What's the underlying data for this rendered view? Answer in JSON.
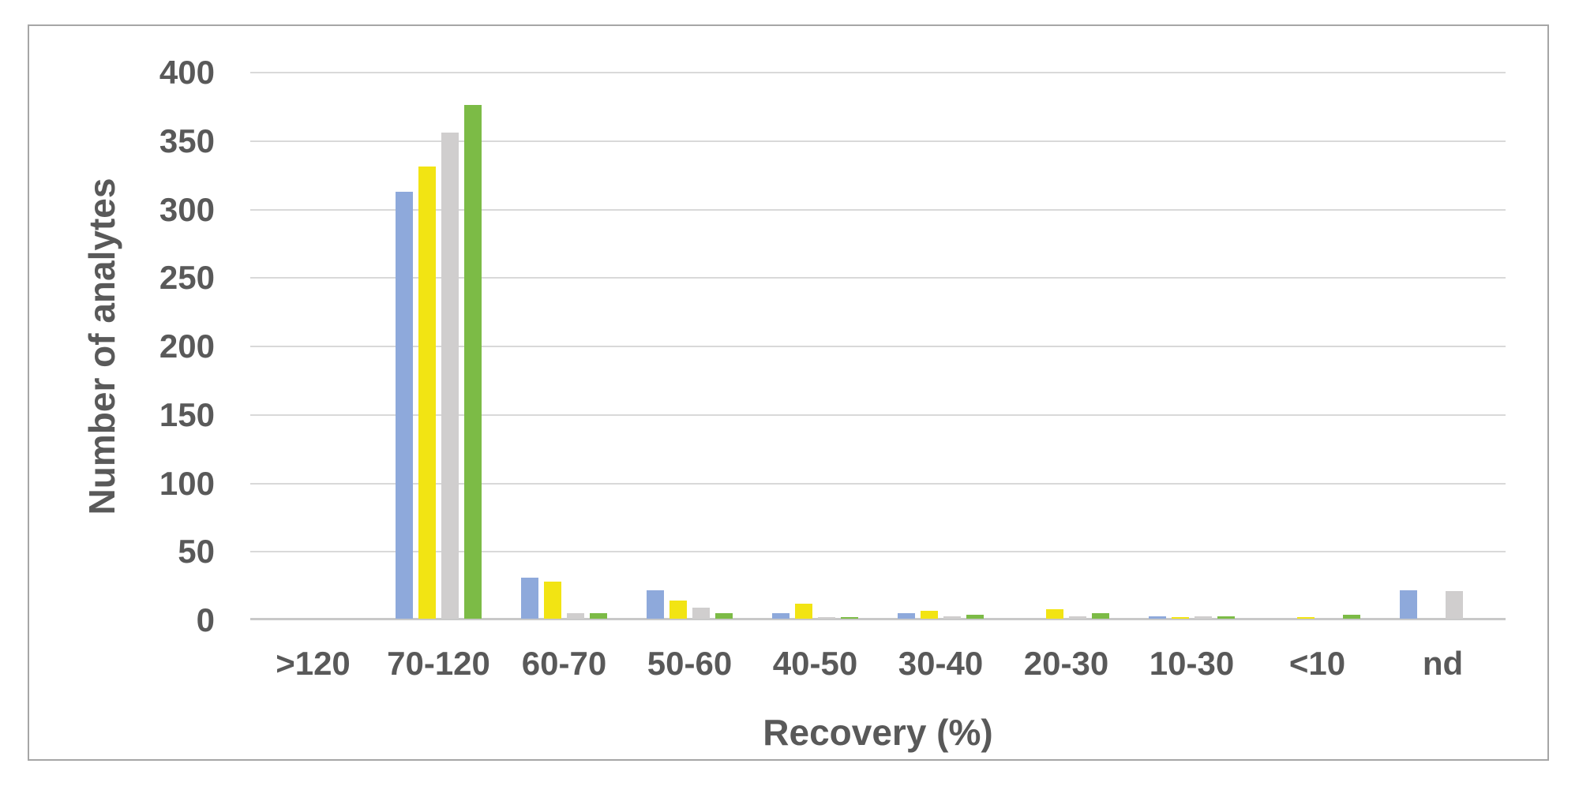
{
  "chart_data": {
    "type": "bar",
    "title": "",
    "xlabel": "Recovery (%)",
    "ylabel": "Number of analytes",
    "categories": [
      ">120",
      "70-120",
      "60-70",
      "50-60",
      "40-50",
      "30-40",
      "20-30",
      "10-30",
      "<10",
      "nd"
    ],
    "series": [
      {
        "name": "series-blue",
        "color": "#8EA9DB",
        "values": [
          0,
          312,
          30,
          21,
          4,
          4,
          0,
          2,
          0,
          21
        ]
      },
      {
        "name": "series-yellow",
        "color": "#F2E413",
        "values": [
          0,
          330,
          27,
          13,
          11,
          6,
          7,
          1,
          1,
          0
        ]
      },
      {
        "name": "series-gray",
        "color": "#D0CECE",
        "values": [
          0,
          355,
          4,
          8,
          1,
          2,
          2,
          2,
          0,
          20
        ]
      },
      {
        "name": "series-green",
        "color": "#7CBB46",
        "values": [
          0,
          375,
          4,
          4,
          1,
          3,
          4,
          2,
          3,
          0
        ]
      }
    ],
    "ylim": [
      0,
      400
    ],
    "yticks": [
      400,
      350,
      300,
      250,
      200,
      150,
      100,
      50,
      0
    ],
    "grid": true,
    "legend": "none"
  },
  "style": {
    "text_color": "#595959",
    "gridline_color": "#D9D9D9",
    "axis_line_color": "#C9C9C9",
    "frame_border_color": "#A6A6A6",
    "background": "#FFFFFF"
  }
}
